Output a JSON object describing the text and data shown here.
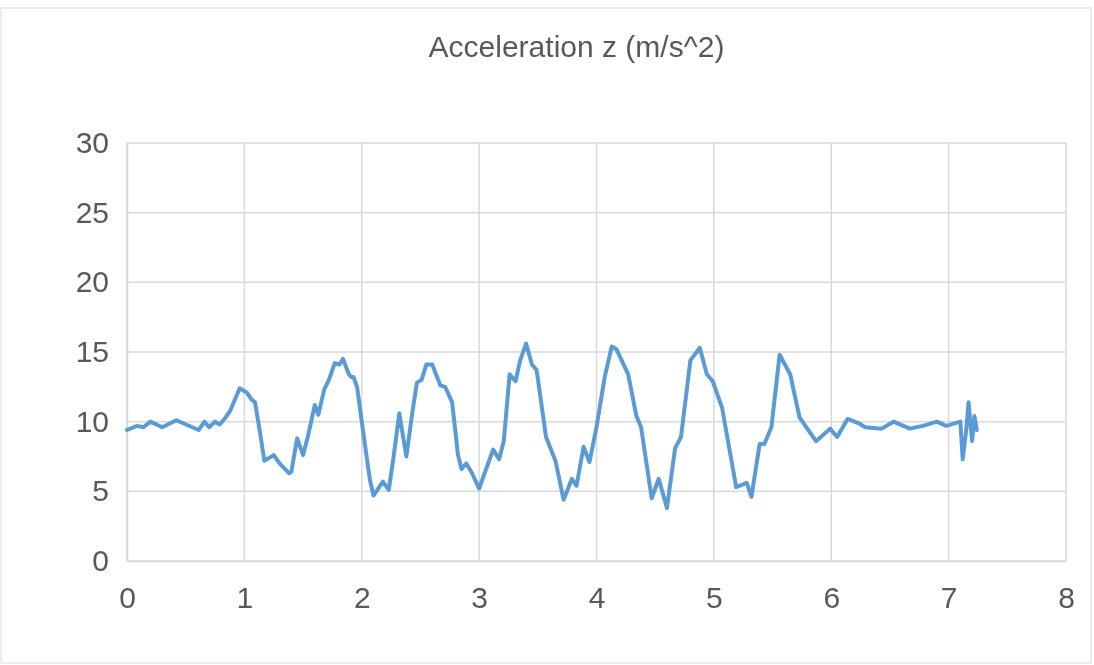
{
  "chart_data": {
    "type": "line",
    "title": "Acceleration z (m/s^2)",
    "series": [
      {
        "color": "#5b9bd5",
        "x": [
          0,
          0.085,
          0.14,
          0.2,
          0.3,
          0.42,
          0.61,
          0.66,
          0.7,
          0.75,
          0.79,
          0.84,
          0.88,
          0.96,
          1.02,
          1.06,
          1.09,
          1.13,
          1.17,
          1.25,
          1.3,
          1.38,
          1.4,
          1.45,
          1.5,
          1.54,
          1.6,
          1.63,
          1.68,
          1.72,
          1.77,
          1.81,
          1.84,
          1.89,
          1.91,
          1.93,
          1.96,
          2.01,
          2.07,
          2.1,
          2.18,
          2.23,
          2.27,
          2.32,
          2.38,
          2.43,
          2.47,
          2.51,
          2.55,
          2.6,
          2.67,
          2.71,
          2.77,
          2.82,
          2.85,
          2.89,
          2.94,
          3.0,
          3.12,
          3.17,
          3.21,
          3.26,
          3.31,
          3.35,
          3.4,
          3.45,
          3.49,
          3.57,
          3.65,
          3.72,
          3.79,
          3.83,
          3.89,
          3.94,
          4.0,
          4.07,
          4.13,
          4.17,
          4.27,
          4.34,
          4.38,
          4.47,
          4.53,
          4.6,
          4.67,
          4.72,
          4.8,
          4.88,
          4.94,
          4.99,
          5.07,
          5.19,
          5.28,
          5.32,
          5.39,
          5.43,
          5.49,
          5.56,
          5.65,
          5.73,
          5.87,
          5.99,
          6.05,
          6.14,
          6.23,
          6.29,
          6.43,
          6.53,
          6.67,
          6.78,
          6.9,
          6.98,
          7.1,
          7.12,
          7.15,
          7.17,
          7.2,
          7.22,
          7.24
        ],
        "values": [
          9.4,
          9.7,
          9.6,
          10.0,
          9.6,
          10.1,
          9.4,
          10.0,
          9.6,
          10.0,
          9.8,
          10.3,
          10.8,
          12.4,
          12.1,
          11.6,
          11.4,
          9.4,
          7.2,
          7.6,
          7.0,
          6.3,
          6.4,
          8.8,
          7.6,
          8.9,
          11.2,
          10.5,
          12.3,
          13.0,
          14.2,
          14.1,
          14.5,
          13.4,
          13.2,
          13.2,
          12.5,
          9.4,
          5.8,
          4.7,
          5.7,
          5.1,
          7.4,
          10.6,
          7.5,
          10.6,
          12.8,
          13.0,
          14.1,
          14.1,
          12.6,
          12.5,
          11.4,
          7.6,
          6.6,
          7.0,
          6.3,
          5.2,
          8.0,
          7.3,
          8.6,
          13.4,
          12.9,
          14.4,
          15.6,
          14.1,
          13.7,
          8.9,
          7.2,
          4.4,
          5.9,
          5.4,
          8.2,
          7.1,
          9.6,
          13.2,
          15.4,
          15.2,
          13.4,
          10.4,
          9.6,
          4.5,
          5.9,
          3.8,
          8.1,
          8.9,
          14.4,
          15.3,
          13.4,
          12.9,
          11.0,
          5.3,
          5.6,
          4.6,
          8.4,
          8.4,
          9.6,
          14.8,
          13.4,
          10.3,
          8.6,
          9.5,
          8.9,
          10.2,
          9.9,
          9.6,
          9.5,
          10.0,
          9.5,
          9.7,
          10.0,
          9.7,
          10.0,
          7.3,
          9.4,
          11.4,
          8.6,
          10.4,
          9.4
        ]
      }
    ],
    "xlim": [
      0,
      8
    ],
    "xticks": [
      0,
      1,
      2,
      3,
      4,
      5,
      6,
      7,
      8
    ],
    "ylim": [
      0,
      30
    ],
    "yticks": [
      0,
      5,
      10,
      15,
      20,
      25,
      30
    ],
    "grid": true,
    "marker": "none",
    "line_style": "solid"
  }
}
